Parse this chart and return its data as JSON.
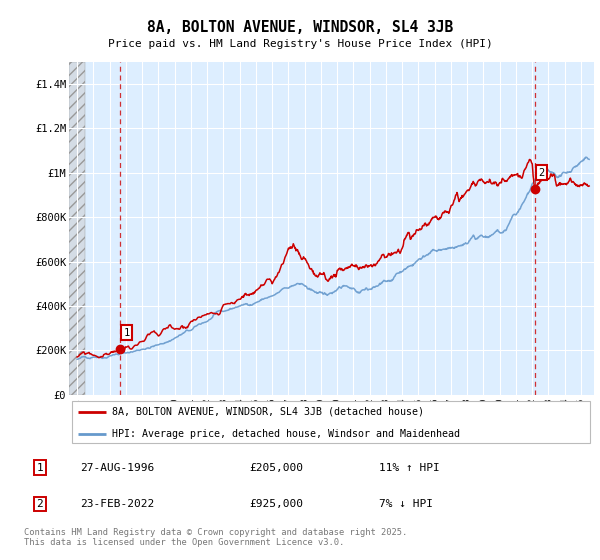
{
  "title": "8A, BOLTON AVENUE, WINDSOR, SL4 3JB",
  "subtitle": "Price paid vs. HM Land Registry's House Price Index (HPI)",
  "xlim": [
    1993.5,
    2025.8
  ],
  "ylim": [
    0,
    1500000
  ],
  "yticks": [
    0,
    200000,
    400000,
    600000,
    800000,
    1000000,
    1200000,
    1400000
  ],
  "ytick_labels": [
    "£0",
    "£200K",
    "£400K",
    "£600K",
    "£800K",
    "£1M",
    "£1.2M",
    "£1.4M"
  ],
  "xticks": [
    1994,
    1995,
    1996,
    1997,
    1998,
    1999,
    2000,
    2001,
    2002,
    2003,
    2004,
    2005,
    2006,
    2007,
    2008,
    2009,
    2010,
    2011,
    2012,
    2013,
    2014,
    2015,
    2016,
    2017,
    2018,
    2019,
    2020,
    2021,
    2022,
    2023,
    2024,
    2025
  ],
  "red_color": "#cc0000",
  "blue_color": "#6699cc",
  "chart_bg": "#ddeeff",
  "grid_color": "#ffffff",
  "hatch_end": 1994.5,
  "point1_x": 1996.65,
  "point1_y": 205000,
  "point1_label": "1",
  "point1_date": "27-AUG-1996",
  "point1_price": "£205,000",
  "point1_hpi": "11% ↑ HPI",
  "point2_x": 2022.15,
  "point2_y": 925000,
  "point2_label": "2",
  "point2_date": "23-FEB-2022",
  "point2_price": "£925,000",
  "point2_hpi": "7% ↓ HPI",
  "legend_line1": "8A, BOLTON AVENUE, WINDSOR, SL4 3JB (detached house)",
  "legend_line2": "HPI: Average price, detached house, Windsor and Maidenhead",
  "copyright": "Contains HM Land Registry data © Crown copyright and database right 2025.\nThis data is licensed under the Open Government Licence v3.0.",
  "vline1_x": 1996.65,
  "vline2_x": 2022.15
}
